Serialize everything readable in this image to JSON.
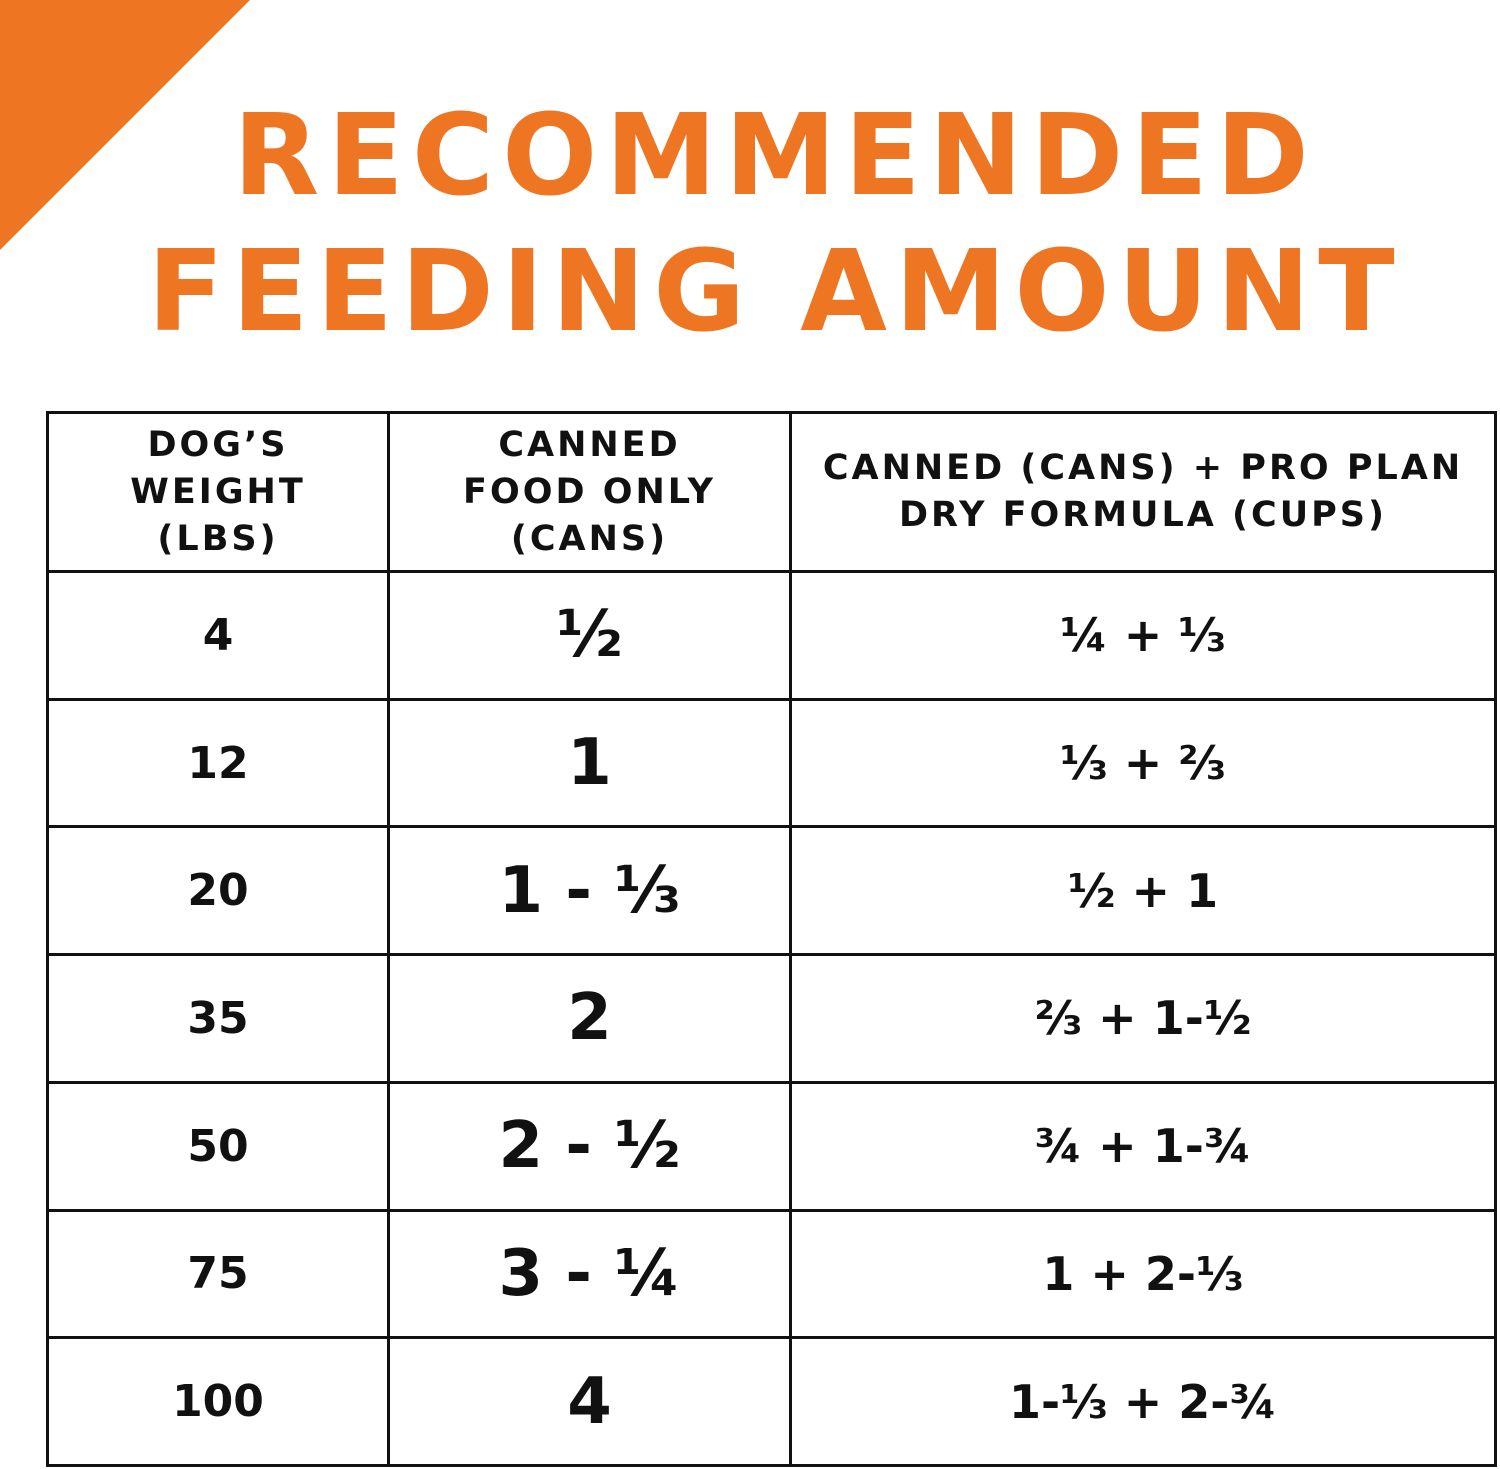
{
  "brand_color": "#ee7623",
  "title": {
    "line1": "RECOMMENDED",
    "line2": "FEEDING AMOUNT"
  },
  "table": {
    "headers": [
      {
        "line1": "DOG’S",
        "line2": "WEIGHT",
        "line3": "(LBS)"
      },
      {
        "line1": "CANNED",
        "line2": "FOOD ONLY",
        "line3": "(CANS)"
      },
      {
        "line1": "CANNED (CANS) + PRO PLAN",
        "line2": "DRY FORMULA (CUPS)"
      }
    ],
    "rows": [
      [
        "4",
        "½",
        "¼ + ⅓"
      ],
      [
        "12",
        "1",
        "⅓ + ⅔"
      ],
      [
        "20",
        "1 - ⅓",
        "½ + 1"
      ],
      [
        "35",
        "2",
        "⅔ + 1-½"
      ],
      [
        "50",
        "2 - ½",
        "¾ + 1-¾"
      ],
      [
        "75",
        "3 - ¼",
        "1 + 2-⅓"
      ],
      [
        "100",
        "4",
        "1-⅓ + 2-¾"
      ]
    ]
  }
}
